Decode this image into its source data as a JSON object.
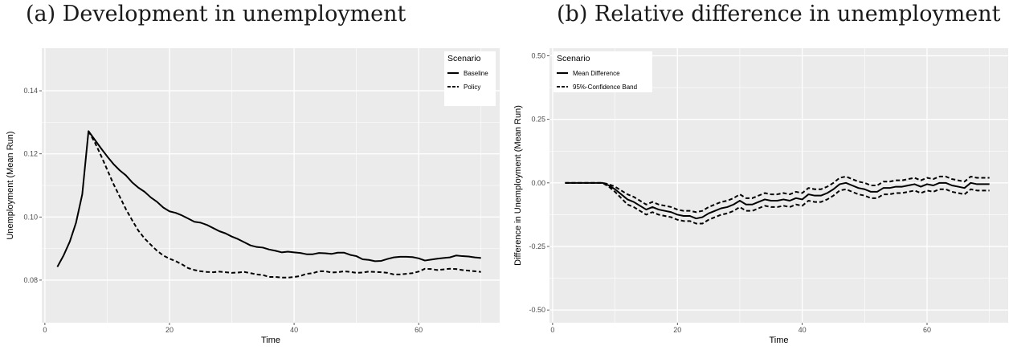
{
  "captions": {
    "a": "(a) Development in unemployment",
    "b": "(b) Relative difference in unemployment"
  },
  "colors": {
    "panel_bg": "#ebebeb",
    "grid": "#ffffff",
    "line": "#000000",
    "legend_bg": "#ffffff",
    "tick_text": "#4d4d4d"
  },
  "chart_data": [
    {
      "type": "line",
      "id": "a",
      "title": "",
      "xlabel": "Time",
      "ylabel": "Unemployment (Mean Run)",
      "xlim": [
        -0.5,
        73
      ],
      "ylim": [
        0.0665,
        0.1535
      ],
      "x_ticks": [
        0,
        20,
        40,
        60
      ],
      "y_ticks": [
        0.08,
        0.1,
        0.12,
        0.14
      ],
      "y_tick_labels": [
        "0.08",
        "0.10",
        "0.12",
        "0.14"
      ],
      "grid": true,
      "legend": {
        "title": "Scenario",
        "position": "top-right"
      },
      "series": [
        {
          "name": "Baseline",
          "dash": "solid",
          "x": [
            2,
            3,
            4,
            5,
            6,
            7,
            8,
            9,
            10,
            11,
            12,
            13,
            14,
            15,
            16,
            17,
            18,
            19,
            20,
            21,
            22,
            23,
            24,
            25,
            26,
            27,
            28,
            29,
            30,
            31,
            32,
            33,
            34,
            35,
            36,
            37,
            38,
            39,
            40,
            41,
            42,
            43,
            44,
            45,
            46,
            47,
            48,
            49,
            50,
            51,
            52,
            53,
            54,
            55,
            56,
            57,
            58,
            59,
            60,
            61,
            62,
            63,
            64,
            65,
            66,
            67,
            68,
            69,
            70
          ],
          "values": [
            0.0842,
            0.0878,
            0.0922,
            0.0982,
            0.1072,
            0.1272,
            0.1245,
            0.1218,
            0.1192,
            0.1168,
            0.1148,
            0.1132,
            0.111,
            0.1093,
            0.108,
            0.1062,
            0.1048,
            0.103,
            0.1018,
            0.1013,
            0.1005,
            0.0995,
            0.0985,
            0.0982,
            0.0975,
            0.0965,
            0.0955,
            0.0948,
            0.0938,
            0.093,
            0.092,
            0.091,
            0.0905,
            0.0903,
            0.0897,
            0.0893,
            0.0888,
            0.089,
            0.0888,
            0.0886,
            0.0882,
            0.0882,
            0.0886,
            0.0885,
            0.0883,
            0.0887,
            0.0887,
            0.088,
            0.0876,
            0.0866,
            0.0864,
            0.086,
            0.0861,
            0.0867,
            0.0872,
            0.0874,
            0.0874,
            0.0873,
            0.0869,
            0.0862,
            0.0865,
            0.0868,
            0.087,
            0.0872,
            0.0878,
            0.0876,
            0.0875,
            0.0872,
            0.087
          ]
        },
        {
          "name": "Policy",
          "dash": "dashed",
          "x": [
            7,
            8,
            9,
            10,
            11,
            12,
            13,
            14,
            15,
            16,
            17,
            18,
            19,
            20,
            21,
            22,
            23,
            24,
            25,
            26,
            27,
            28,
            29,
            30,
            31,
            32,
            33,
            34,
            35,
            36,
            37,
            38,
            39,
            40,
            41,
            42,
            43,
            44,
            45,
            46,
            47,
            48,
            49,
            50,
            51,
            52,
            53,
            54,
            55,
            56,
            57,
            58,
            59,
            60,
            61,
            62,
            63,
            64,
            65,
            66,
            67,
            68,
            69,
            70
          ],
          "values": [
            0.1272,
            0.1237,
            0.1195,
            0.115,
            0.1105,
            0.1065,
            0.1025,
            0.099,
            0.0957,
            0.0932,
            0.0912,
            0.0893,
            0.0878,
            0.0868,
            0.086,
            0.085,
            0.0838,
            0.0832,
            0.0828,
            0.0826,
            0.0825,
            0.0827,
            0.0825,
            0.0823,
            0.0824,
            0.0826,
            0.0822,
            0.0818,
            0.0816,
            0.081,
            0.081,
            0.0808,
            0.0808,
            0.081,
            0.0813,
            0.082,
            0.0822,
            0.0828,
            0.0828,
            0.0824,
            0.0825,
            0.0828,
            0.0826,
            0.0823,
            0.0824,
            0.0827,
            0.0826,
            0.0825,
            0.0823,
            0.0818,
            0.0818,
            0.082,
            0.0822,
            0.0827,
            0.0836,
            0.0835,
            0.0832,
            0.0834,
            0.0836,
            0.0835,
            0.0832,
            0.083,
            0.0828,
            0.0826
          ]
        }
      ]
    },
    {
      "type": "line",
      "id": "b",
      "title": "",
      "xlabel": "Time",
      "ylabel": "Difference in Unemployment (Mean Run)",
      "xlim": [
        -0.5,
        73
      ],
      "ylim": [
        -0.55,
        0.53
      ],
      "x_ticks": [
        0,
        20,
        40,
        60
      ],
      "y_ticks": [
        -0.5,
        -0.25,
        0.0,
        0.25,
        0.5
      ],
      "y_tick_labels": [
        "-0.50",
        "-0.25",
        "0.00",
        "0.25",
        "0.50"
      ],
      "grid": true,
      "legend": {
        "title": "Scenario",
        "position": "top-left"
      },
      "series": [
        {
          "name": "Mean Difference",
          "dash": "solid",
          "x": [
            2,
            3,
            4,
            5,
            6,
            7,
            8,
            9,
            10,
            11,
            12,
            13,
            14,
            15,
            16,
            17,
            18,
            19,
            20,
            21,
            22,
            23,
            24,
            25,
            26,
            27,
            28,
            29,
            30,
            31,
            32,
            33,
            34,
            35,
            36,
            37,
            38,
            39,
            40,
            41,
            42,
            43,
            44,
            45,
            46,
            47,
            48,
            49,
            50,
            51,
            52,
            53,
            54,
            55,
            56,
            57,
            58,
            59,
            60,
            61,
            62,
            63,
            64,
            65,
            66,
            67,
            68,
            69,
            70
          ],
          "values": [
            0,
            0,
            0,
            0,
            0,
            0,
            0,
            -0.01,
            -0.025,
            -0.045,
            -0.065,
            -0.075,
            -0.09,
            -0.105,
            -0.095,
            -0.105,
            -0.11,
            -0.115,
            -0.125,
            -0.13,
            -0.13,
            -0.14,
            -0.135,
            -0.12,
            -0.11,
            -0.1,
            -0.095,
            -0.085,
            -0.07,
            -0.085,
            -0.085,
            -0.075,
            -0.065,
            -0.07,
            -0.07,
            -0.065,
            -0.07,
            -0.06,
            -0.065,
            -0.045,
            -0.05,
            -0.05,
            -0.04,
            -0.025,
            -0.005,
            0.0,
            -0.01,
            -0.02,
            -0.025,
            -0.035,
            -0.035,
            -0.02,
            -0.02,
            -0.015,
            -0.015,
            -0.01,
            -0.005,
            -0.015,
            -0.005,
            -0.01,
            0.0,
            0.0,
            -0.01,
            -0.015,
            -0.02,
            0.0,
            -0.005,
            -0.005,
            -0.005
          ]
        },
        {
          "name": "95%-Confidence Band",
          "dash": "dashed",
          "x": [
            2,
            3,
            4,
            5,
            6,
            7,
            8,
            9,
            10,
            11,
            12,
            13,
            14,
            15,
            16,
            17,
            18,
            19,
            20,
            21,
            22,
            23,
            24,
            25,
            26,
            27,
            28,
            29,
            30,
            31,
            32,
            33,
            34,
            35,
            36,
            37,
            38,
            39,
            40,
            41,
            42,
            43,
            44,
            45,
            46,
            47,
            48,
            49,
            50,
            51,
            52,
            53,
            54,
            55,
            56,
            57,
            58,
            59,
            60,
            61,
            62,
            63,
            64,
            65,
            66,
            67,
            68,
            69,
            70
          ],
          "values": [
            0,
            0,
            0,
            0,
            0,
            0,
            0,
            -0.005,
            -0.015,
            -0.03,
            -0.045,
            -0.055,
            -0.07,
            -0.085,
            -0.075,
            -0.085,
            -0.09,
            -0.095,
            -0.105,
            -0.11,
            -0.11,
            -0.115,
            -0.11,
            -0.095,
            -0.085,
            -0.075,
            -0.07,
            -0.06,
            -0.045,
            -0.06,
            -0.06,
            -0.05,
            -0.04,
            -0.045,
            -0.045,
            -0.04,
            -0.045,
            -0.035,
            -0.04,
            -0.02,
            -0.025,
            -0.025,
            -0.015,
            0.0,
            0.02,
            0.025,
            0.015,
            0.005,
            0.0,
            -0.01,
            -0.01,
            0.005,
            0.005,
            0.01,
            0.01,
            0.015,
            0.02,
            0.01,
            0.02,
            0.015,
            0.025,
            0.025,
            0.015,
            0.01,
            0.005,
            0.025,
            0.02,
            0.02,
            0.02
          ]
        },
        {
          "name": "95%-Confidence Band",
          "dash": "dashed",
          "x": [
            2,
            3,
            4,
            5,
            6,
            7,
            8,
            9,
            10,
            11,
            12,
            13,
            14,
            15,
            16,
            17,
            18,
            19,
            20,
            21,
            22,
            23,
            24,
            25,
            26,
            27,
            28,
            29,
            30,
            31,
            32,
            33,
            34,
            35,
            36,
            37,
            38,
            39,
            40,
            41,
            42,
            43,
            44,
            45,
            46,
            47,
            48,
            49,
            50,
            51,
            52,
            53,
            54,
            55,
            56,
            57,
            58,
            59,
            60,
            61,
            62,
            63,
            64,
            65,
            66,
            67,
            68,
            69,
            70
          ],
          "values": [
            0,
            0,
            0,
            0,
            0,
            0,
            0,
            -0.015,
            -0.035,
            -0.06,
            -0.085,
            -0.095,
            -0.11,
            -0.125,
            -0.115,
            -0.125,
            -0.13,
            -0.135,
            -0.145,
            -0.15,
            -0.15,
            -0.16,
            -0.16,
            -0.145,
            -0.135,
            -0.125,
            -0.12,
            -0.11,
            -0.095,
            -0.11,
            -0.11,
            -0.1,
            -0.09,
            -0.095,
            -0.095,
            -0.09,
            -0.095,
            -0.085,
            -0.09,
            -0.07,
            -0.075,
            -0.075,
            -0.065,
            -0.05,
            -0.03,
            -0.025,
            -0.035,
            -0.045,
            -0.05,
            -0.06,
            -0.06,
            -0.045,
            -0.045,
            -0.04,
            -0.04,
            -0.035,
            -0.03,
            -0.04,
            -0.03,
            -0.035,
            -0.025,
            -0.025,
            -0.035,
            -0.04,
            -0.045,
            -0.025,
            -0.03,
            -0.03,
            -0.03
          ]
        }
      ]
    }
  ]
}
